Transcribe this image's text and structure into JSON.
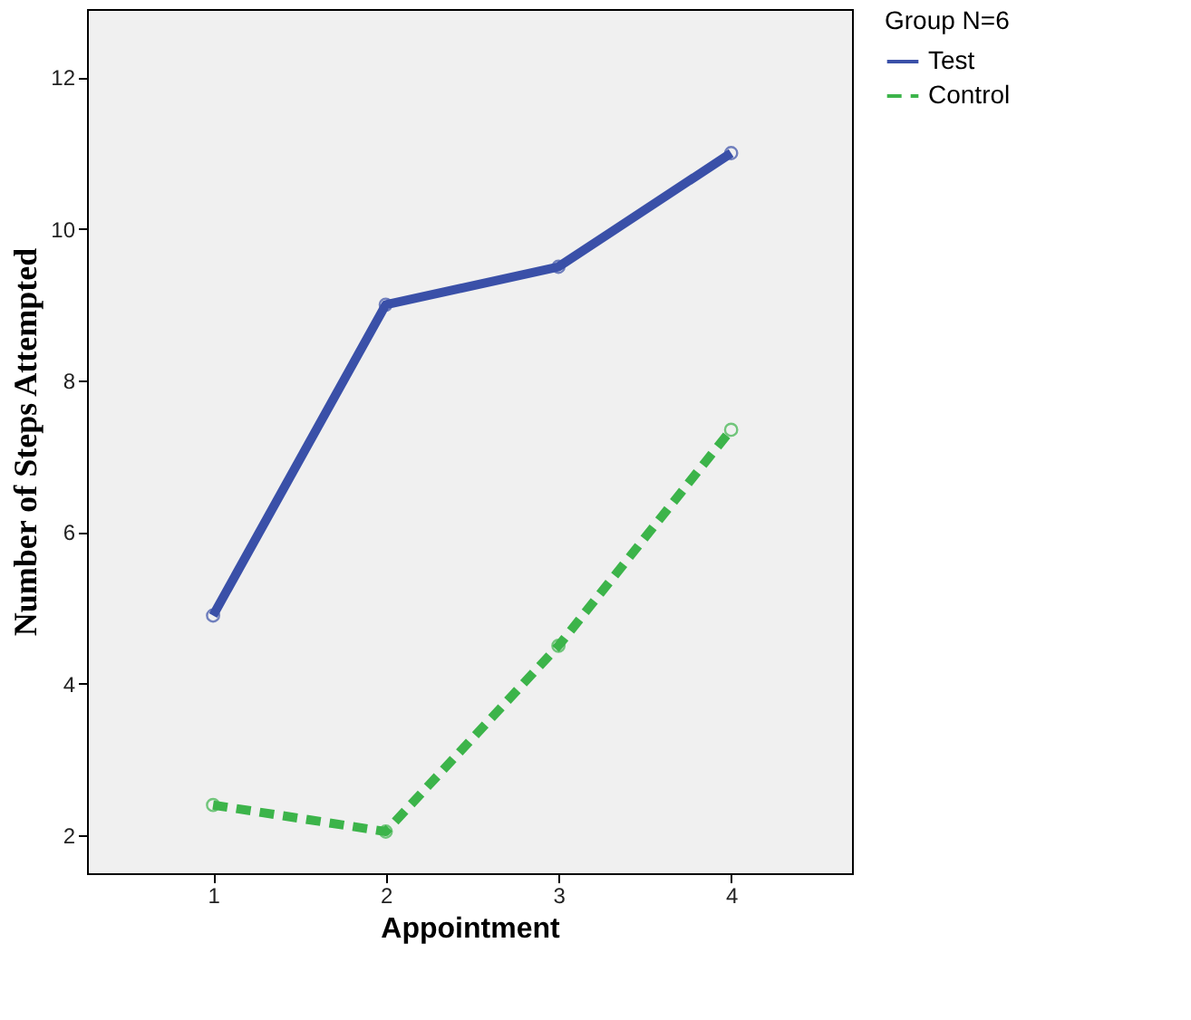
{
  "chart_data": {
    "type": "line",
    "xlabel": "Appointment",
    "ylabel": "Number of Steps Attempted",
    "legend_title": "Group N=6",
    "categories": [
      "1",
      "2",
      "3",
      "4"
    ],
    "series": [
      {
        "name": "Test",
        "color": "#3a50a8",
        "line_style": "solid",
        "values": [
          4.9,
          9.0,
          9.5,
          11.0
        ]
      },
      {
        "name": "Control",
        "color": "#3cb44a",
        "line_style": "dashed",
        "values": [
          2.4,
          2.05,
          4.5,
          7.35
        ]
      }
    ],
    "ylim": [
      1.5,
      12.9
    ],
    "yticks": [
      2,
      4,
      6,
      8,
      10,
      12
    ],
    "grid": false,
    "legend": "top right",
    "marker": "circle"
  }
}
